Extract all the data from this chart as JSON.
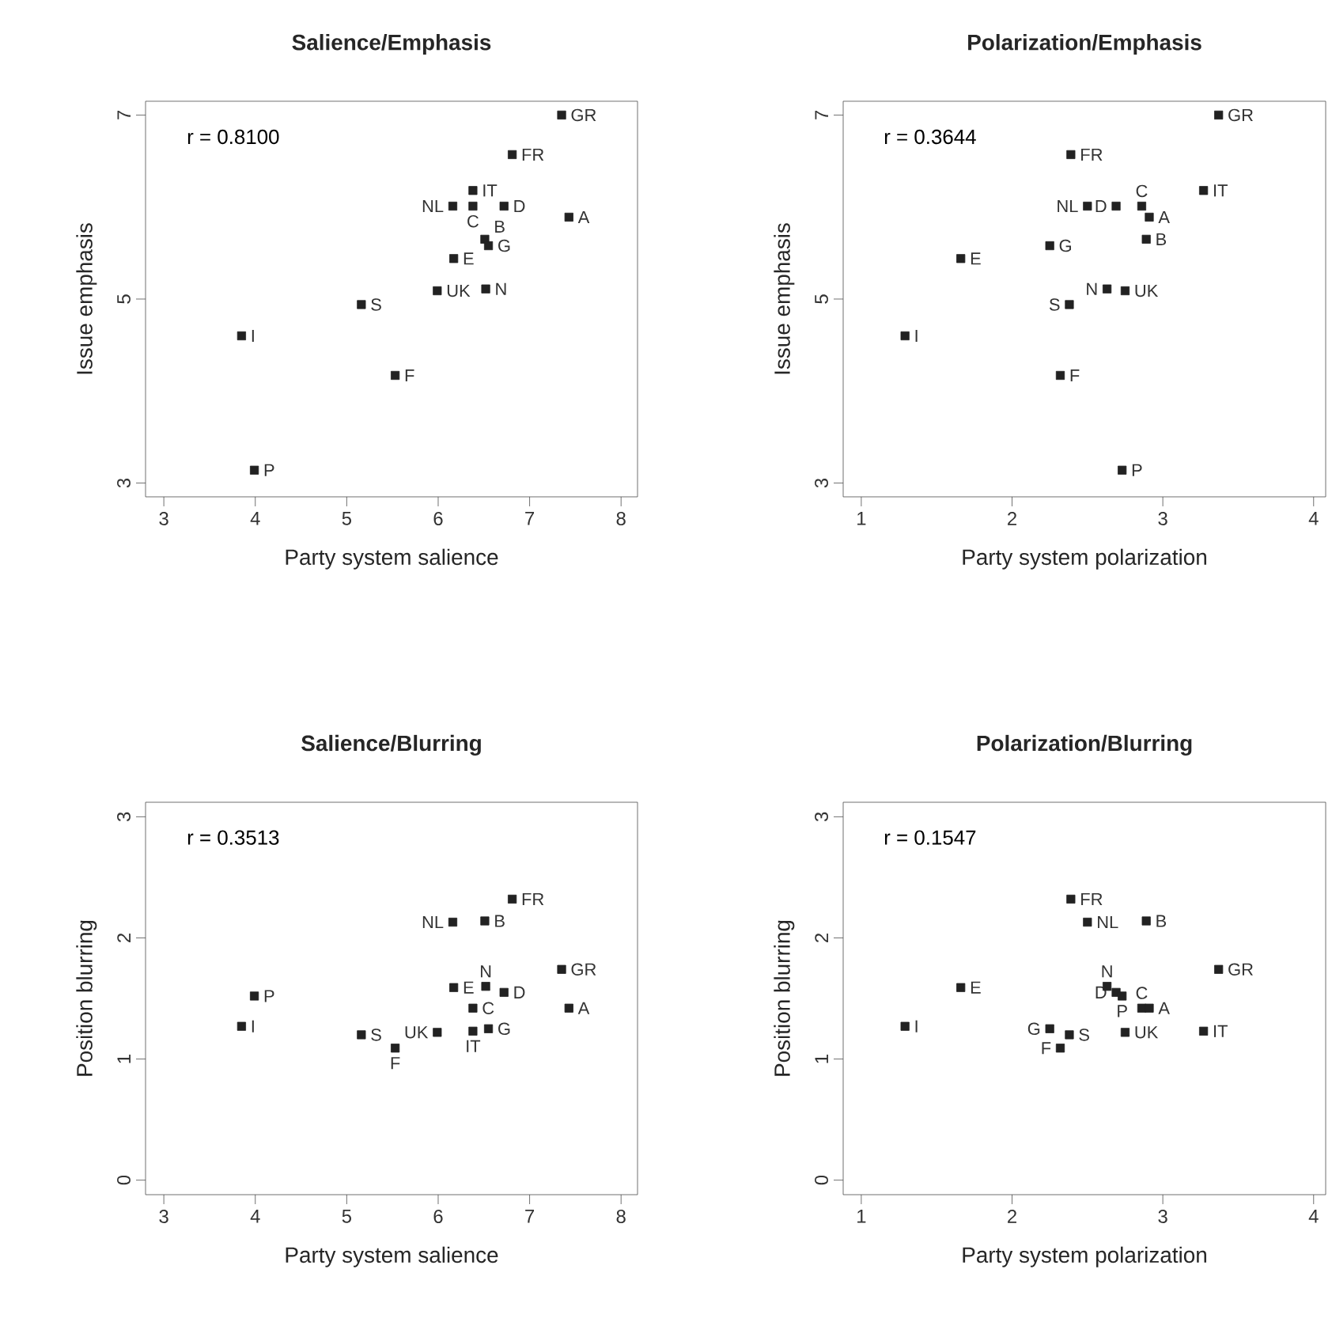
{
  "chart_data": [
    {
      "type": "scatter",
      "title": "Salience/Emphasis",
      "xlabel": "Party system salience",
      "ylabel": "Issue emphasis",
      "color": "#222222",
      "marker": "square",
      "x": [
        7.35,
        6.81,
        6.38,
        6.16,
        6.38,
        6.72,
        7.43,
        6.51,
        6.55,
        6.17,
        5.99,
        6.52,
        5.16,
        3.85,
        5.53,
        3.99
      ],
      "values": [
        7.0,
        6.57,
        6.18,
        6.01,
        6.01,
        6.01,
        5.89,
        5.65,
        5.58,
        5.44,
        5.09,
        5.11,
        4.94,
        4.6,
        4.17,
        3.14
      ],
      "xlim": [
        2.8,
        8.18
      ],
      "ylim": [
        2.85,
        7.15
      ],
      "xticks": [
        3,
        4,
        5,
        6,
        7,
        8
      ],
      "yticks": [
        3,
        5,
        7
      ],
      "annotations": [
        "r = 0.8100",
        {
          "text": "GR",
          "x": 7.35,
          "y": 7.0
        },
        {
          "text": "FR",
          "x": 6.81,
          "y": 6.57
        },
        {
          "text": "IT",
          "x": 6.38,
          "y": 6.18
        },
        {
          "text": "NL",
          "x": 6.16,
          "y": 6.01
        },
        {
          "text": "C",
          "x": 6.38,
          "y": 6.01
        },
        {
          "text": "D",
          "x": 6.72,
          "y": 6.01
        },
        {
          "text": "A",
          "x": 7.43,
          "y": 5.89
        },
        {
          "text": "B",
          "x": 6.51,
          "y": 5.65
        },
        {
          "text": "G",
          "x": 6.55,
          "y": 5.58
        },
        {
          "text": "E",
          "x": 6.17,
          "y": 5.44
        },
        {
          "text": "UK",
          "x": 5.99,
          "y": 5.09
        },
        {
          "text": "N",
          "x": 6.52,
          "y": 5.11
        },
        {
          "text": "S",
          "x": 5.16,
          "y": 4.94
        },
        {
          "text": "I",
          "x": 3.85,
          "y": 4.6
        },
        {
          "text": "F",
          "x": 5.53,
          "y": 4.17
        },
        {
          "text": "P",
          "x": 3.99,
          "y": 3.14
        }
      ]
    },
    {
      "type": "scatter",
      "title": "Polarization/Emphasis",
      "xlabel": "Party system polarization",
      "ylabel": "Issue emphasis",
      "color": "#222222",
      "marker": "square",
      "x": [
        3.37,
        2.39,
        3.27,
        2.5,
        2.86,
        2.69,
        2.91,
        2.89,
        2.25,
        1.66,
        2.75,
        2.63,
        2.38,
        1.29,
        2.32,
        2.73
      ],
      "values": [
        7.0,
        6.57,
        6.18,
        6.01,
        6.01,
        6.01,
        5.89,
        5.65,
        5.58,
        5.44,
        5.09,
        5.11,
        4.94,
        4.6,
        4.17,
        3.14
      ],
      "xlim": [
        0.88,
        4.08
      ],
      "ylim": [
        2.85,
        7.15
      ],
      "xticks": [
        1,
        2,
        3,
        4
      ],
      "yticks": [
        3,
        5,
        7
      ],
      "annotations": [
        "r = 0.3644",
        {
          "text": "GR",
          "x": 3.37,
          "y": 7.0
        },
        {
          "text": "FR",
          "x": 2.39,
          "y": 6.57
        },
        {
          "text": "IT",
          "x": 3.27,
          "y": 6.18
        },
        {
          "text": "NL",
          "x": 2.5,
          "y": 6.01
        },
        {
          "text": "C",
          "x": 2.86,
          "y": 6.01
        },
        {
          "text": "D",
          "x": 2.69,
          "y": 6.01
        },
        {
          "text": "A",
          "x": 2.91,
          "y": 5.89
        },
        {
          "text": "B",
          "x": 2.89,
          "y": 5.65
        },
        {
          "text": "G",
          "x": 2.25,
          "y": 5.58
        },
        {
          "text": "E",
          "x": 1.66,
          "y": 5.44
        },
        {
          "text": "UK",
          "x": 2.75,
          "y": 5.09
        },
        {
          "text": "N",
          "x": 2.63,
          "y": 5.11
        },
        {
          "text": "S",
          "x": 2.38,
          "y": 4.94
        },
        {
          "text": "I",
          "x": 1.29,
          "y": 4.6
        },
        {
          "text": "F",
          "x": 2.32,
          "y": 4.17
        },
        {
          "text": "P",
          "x": 2.73,
          "y": 3.14
        }
      ]
    },
    {
      "type": "scatter",
      "title": "Salience/Blurring",
      "xlabel": "Party system salience",
      "ylabel": "Position blurring",
      "color": "#222222",
      "marker": "square",
      "x": [
        7.35,
        6.81,
        6.38,
        6.16,
        6.38,
        6.72,
        7.43,
        6.51,
        6.55,
        6.17,
        5.99,
        6.52,
        5.16,
        3.85,
        5.53,
        3.99
      ],
      "values": [
        1.74,
        2.32,
        1.23,
        2.13,
        1.42,
        1.55,
        1.42,
        2.14,
        1.25,
        1.59,
        1.22,
        1.6,
        1.2,
        1.27,
        1.09,
        1.52
      ],
      "xlim": [
        2.8,
        8.18
      ],
      "ylim": [
        -0.12,
        3.12
      ],
      "xticks": [
        3,
        4,
        5,
        6,
        7,
        8
      ],
      "yticks": [
        0,
        1,
        2,
        3
      ],
      "annotations": [
        "r = 0.3513",
        {
          "text": "GR",
          "x": 7.35,
          "y": 1.74
        },
        {
          "text": "FR",
          "x": 6.81,
          "y": 2.32
        },
        {
          "text": "IT",
          "x": 6.38,
          "y": 1.23
        },
        {
          "text": "NL",
          "x": 6.16,
          "y": 2.13
        },
        {
          "text": "C",
          "x": 6.38,
          "y": 1.42
        },
        {
          "text": "D",
          "x": 6.72,
          "y": 1.55
        },
        {
          "text": "A",
          "x": 7.43,
          "y": 1.42
        },
        {
          "text": "B",
          "x": 6.51,
          "y": 2.14
        },
        {
          "text": "G",
          "x": 6.55,
          "y": 1.25
        },
        {
          "text": "E",
          "x": 6.17,
          "y": 1.59
        },
        {
          "text": "UK",
          "x": 5.99,
          "y": 1.22
        },
        {
          "text": "N",
          "x": 6.52,
          "y": 1.6
        },
        {
          "text": "S",
          "x": 5.16,
          "y": 1.2
        },
        {
          "text": "I",
          "x": 3.85,
          "y": 1.27
        },
        {
          "text": "F",
          "x": 5.53,
          "y": 1.09
        },
        {
          "text": "P",
          "x": 3.99,
          "y": 1.52
        }
      ]
    },
    {
      "type": "scatter",
      "title": "Polarization/Blurring",
      "xlabel": "Party system polarization",
      "ylabel": "Position blurring",
      "color": "#222222",
      "marker": "square",
      "x": [
        3.37,
        2.39,
        3.27,
        2.5,
        2.86,
        2.69,
        2.91,
        2.89,
        2.25,
        1.66,
        2.75,
        2.63,
        2.38,
        1.29,
        2.32,
        2.73
      ],
      "values": [
        1.74,
        2.32,
        1.23,
        2.13,
        1.42,
        1.55,
        1.42,
        2.14,
        1.25,
        1.59,
        1.22,
        1.6,
        1.2,
        1.27,
        1.09,
        1.52
      ],
      "xlim": [
        0.88,
        4.08
      ],
      "ylim": [
        -0.12,
        3.12
      ],
      "xticks": [
        1,
        2,
        3,
        4
      ],
      "yticks": [
        0,
        1,
        2,
        3
      ],
      "annotations": [
        "r = 0.1547",
        {
          "text": "GR",
          "x": 3.37,
          "y": 1.74
        },
        {
          "text": "FR",
          "x": 2.39,
          "y": 2.32
        },
        {
          "text": "IT",
          "x": 3.27,
          "y": 1.23
        },
        {
          "text": "NL",
          "x": 2.5,
          "y": 2.13
        },
        {
          "text": "C",
          "x": 2.86,
          "y": 1.42
        },
        {
          "text": "D",
          "x": 2.69,
          "y": 1.55
        },
        {
          "text": "A",
          "x": 2.91,
          "y": 1.42
        },
        {
          "text": "B",
          "x": 2.89,
          "y": 2.14
        },
        {
          "text": "G",
          "x": 2.25,
          "y": 1.25
        },
        {
          "text": "E",
          "x": 1.66,
          "y": 1.59
        },
        {
          "text": "UK",
          "x": 2.75,
          "y": 1.22
        },
        {
          "text": "N",
          "x": 2.63,
          "y": 1.6
        },
        {
          "text": "S",
          "x": 2.38,
          "y": 1.2
        },
        {
          "text": "I",
          "x": 1.29,
          "y": 1.27
        },
        {
          "text": "F",
          "x": 2.32,
          "y": 1.09
        },
        {
          "text": "P",
          "x": 2.73,
          "y": 1.52
        }
      ]
    }
  ]
}
